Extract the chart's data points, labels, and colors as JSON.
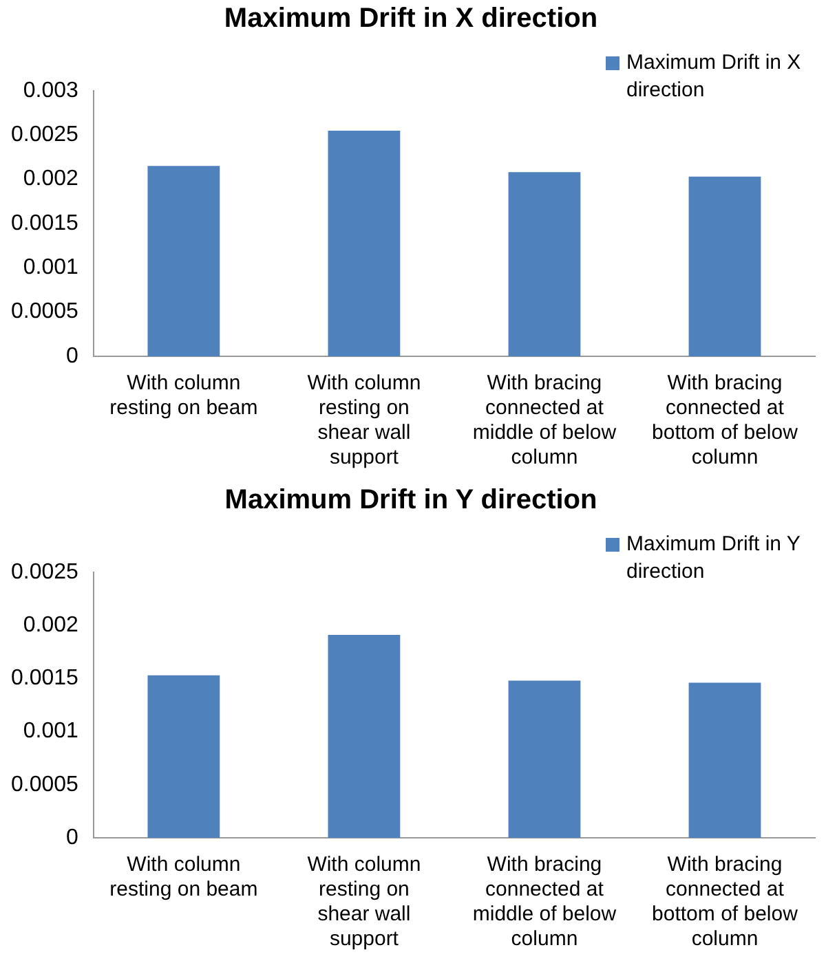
{
  "chart_data": [
    {
      "type": "bar",
      "title": "Maximum Drift in X direction",
      "categories": [
        "With column resting on beam",
        "With column resting on shear wall support",
        "With bracing connected at middle of below column",
        "With bracing connected at bottom of below column"
      ],
      "series": [
        {
          "name": "Maximum Drift in X direction",
          "color": "#4f81bd",
          "values": [
            0.00215,
            0.00255,
            0.00208,
            0.00203
          ]
        }
      ],
      "ylim": [
        0,
        0.003
      ],
      "yticks": [
        0,
        0.0005,
        0.001,
        0.0015,
        0.002,
        0.0025,
        0.003
      ],
      "grid": false,
      "legend": "top right"
    },
    {
      "type": "bar",
      "title": "Maximum Drift in Y direction",
      "categories": [
        "With column resting on beam",
        "With column resting on shear wall support",
        "With bracing connected at middle of below column",
        "With bracing connected at bottom of below column"
      ],
      "series": [
        {
          "name": "Maximum Drift in Y direction",
          "color": "#4f81bd",
          "values": [
            0.00153,
            0.00191,
            0.00148,
            0.00146
          ]
        }
      ],
      "ylim": [
        0,
        0.0025
      ],
      "yticks": [
        0,
        0.0005,
        0.001,
        0.0015,
        0.002,
        0.0025
      ],
      "grid": false,
      "legend": "top right"
    }
  ]
}
